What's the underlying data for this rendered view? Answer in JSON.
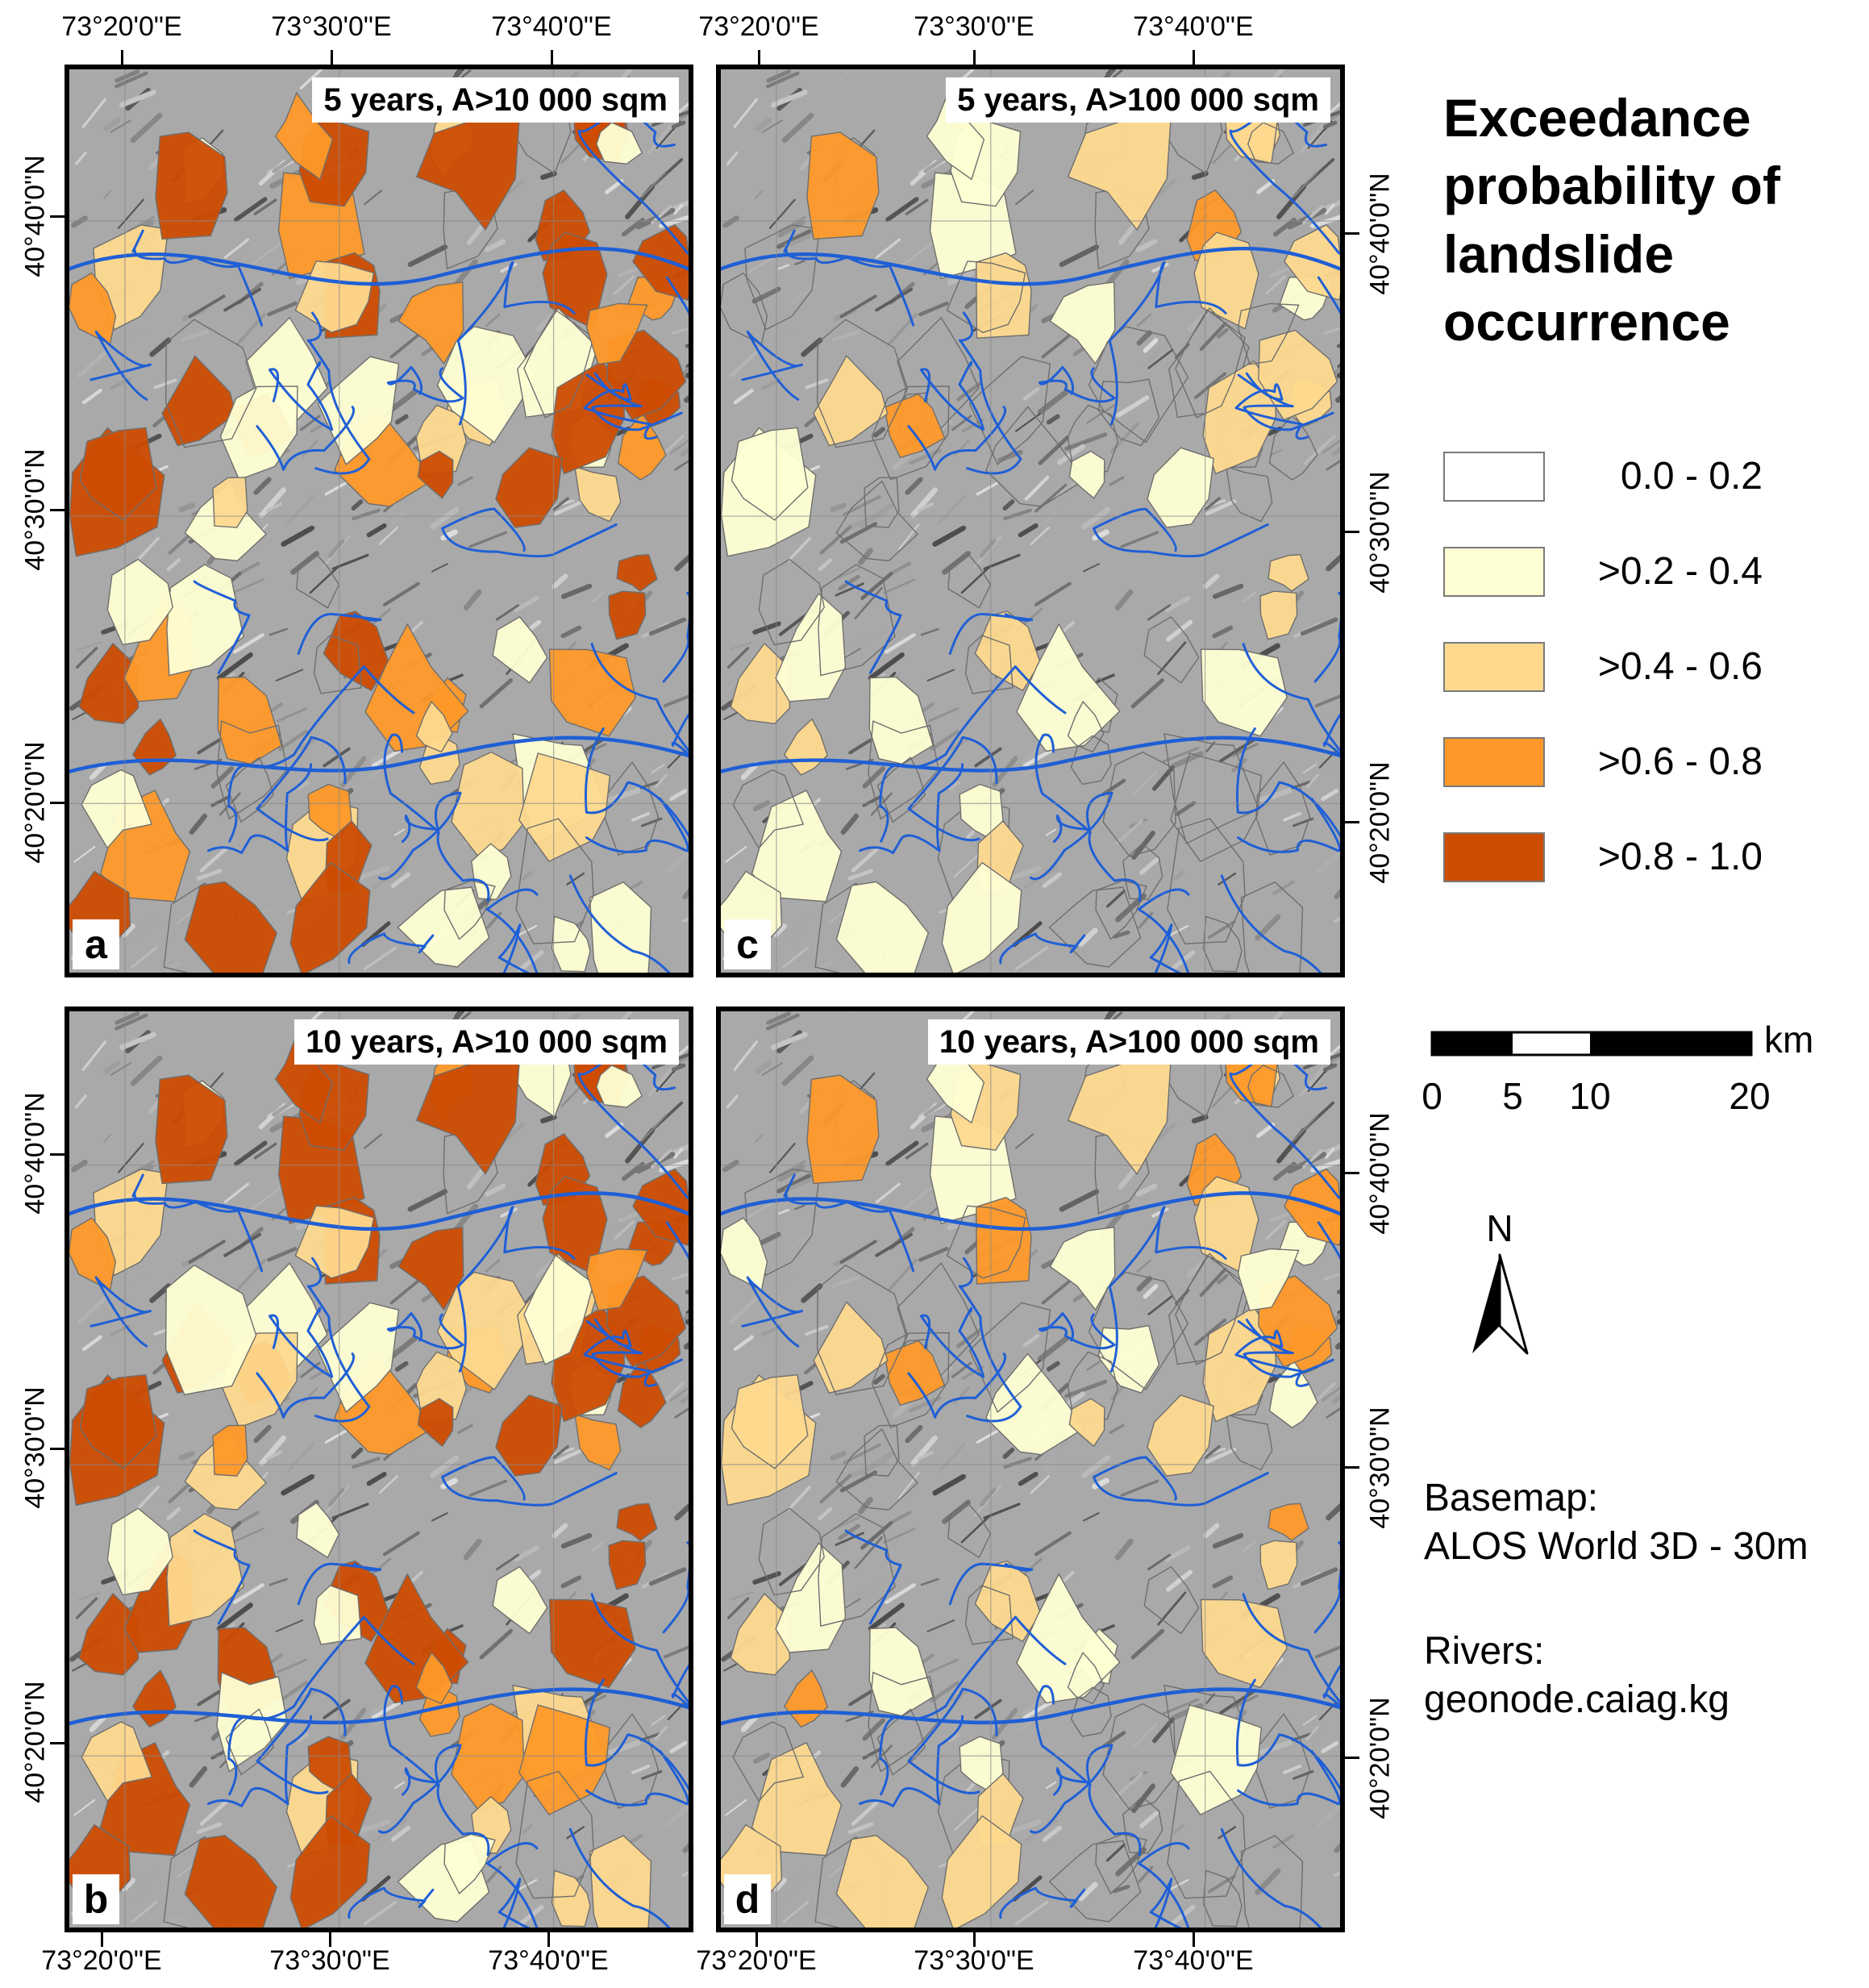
{
  "panels": {
    "a": {
      "letter": "a",
      "title": "5 years, A>10 000 sqm"
    },
    "b": {
      "letter": "b",
      "title": "10 years, A>10 000 sqm"
    },
    "c": {
      "letter": "c",
      "title": "5 years, A>100 000 sqm"
    },
    "d": {
      "letter": "d",
      "title": "10 years, A>100 000 sqm"
    }
  },
  "ticks": {
    "longitude": [
      "73°20'0\"E",
      "73°30'0\"E",
      "73°40'0\"E"
    ],
    "latitude": [
      "40°40'0\"N",
      "40°30'0\"N",
      "40°20'0\"N"
    ]
  },
  "legend": {
    "title": "Exceedance probability of landslide occurrence",
    "items": [
      {
        "label": "0.0 - 0.2",
        "color": "#ffffff"
      },
      {
        "label": ">0.2 - 0.4",
        "color": "#ffffd4"
      },
      {
        "label": ">0.4 - 0.6",
        "color": "#fed98e"
      },
      {
        "label": ">0.6 - 0.8",
        "color": "#fe9929"
      },
      {
        "label": ">0.8 - 1.0",
        "color": "#cc4c02"
      }
    ]
  },
  "scalebar": {
    "labels": [
      "0",
      "5",
      "10",
      "20"
    ],
    "unit": "km"
  },
  "north": {
    "label": "N"
  },
  "credits": {
    "basemap_heading": "Basemap:",
    "basemap_source": "ALOS World 3D - 30m",
    "rivers_heading": "Rivers:",
    "rivers_source": "geonode.caiag.kg"
  },
  "colors": {
    "river": "#1f5fd6",
    "boundary": "#6e6e6e",
    "hillshade": "#a9a9a9"
  }
}
